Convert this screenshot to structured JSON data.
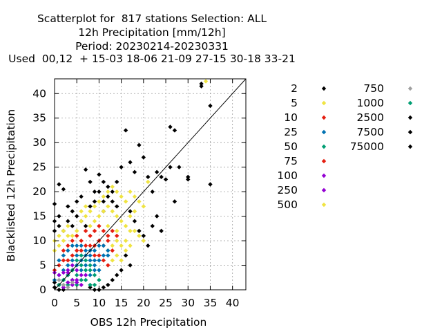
{
  "header": {
    "line1": "Scatterplot for  817 stations Selection: ALL",
    "line2": "12h Precipitation [mm/12h]",
    "line3": "Period: 20230214-20230331",
    "line4": "Used  00,12  + 15-03 18-06 21-09 27-15 30-18 33-21"
  },
  "chart_data": {
    "type": "scatter",
    "title": "Scatterplot for  817 stations Selection: ALL",
    "xlabel": "OBS 12h Precipitation",
    "ylabel": "Blacklisted 12h Precipitation",
    "xlim": [
      0,
      43
    ],
    "ylim": [
      0,
      43
    ],
    "xticks": [
      0,
      5,
      10,
      15,
      20,
      25,
      30,
      35,
      40
    ],
    "yticks": [
      0,
      5,
      10,
      15,
      20,
      25,
      30,
      35,
      40
    ],
    "grid": true,
    "diagonal": true,
    "legend_position": "right",
    "legend": [
      {
        "label": "2",
        "color": "#000000"
      },
      {
        "label": "5",
        "color": "#f0e442"
      },
      {
        "label": "10",
        "color": "#e51e10"
      },
      {
        "label": "25",
        "color": "#0072b2"
      },
      {
        "label": "50",
        "color": "#009e73"
      },
      {
        "label": "75",
        "color": "#e51e10"
      },
      {
        "label": "100",
        "color": "#9400d3"
      },
      {
        "label": "250",
        "color": "#9400d3"
      },
      {
        "label": "500",
        "color": "#f0e442"
      },
      {
        "label": "750",
        "color": "#a0a0a0"
      },
      {
        "label": "1000",
        "color": "#009e73"
      },
      {
        "label": "2500",
        "color": "#000000"
      },
      {
        "label": "7500",
        "color": "#000000"
      },
      {
        "label": "75000",
        "color": "#000000"
      }
    ],
    "series": [
      {
        "name": "2",
        "color": "#000000",
        "points": [
          [
            0,
            17.5
          ],
          [
            1,
            21.5
          ],
          [
            2,
            20.5
          ],
          [
            3,
            17
          ],
          [
            4,
            16
          ],
          [
            5,
            18
          ],
          [
            6,
            19
          ],
          [
            7,
            24.5
          ],
          [
            8,
            22
          ],
          [
            9,
            20
          ],
          [
            10,
            23.5
          ],
          [
            11,
            22
          ],
          [
            12,
            21
          ],
          [
            13,
            20
          ],
          [
            14,
            22
          ],
          [
            15,
            25
          ],
          [
            16,
            32.5
          ],
          [
            17,
            26
          ],
          [
            18,
            24
          ],
          [
            19,
            29.5
          ],
          [
            20,
            27
          ],
          [
            21,
            23
          ],
          [
            22,
            20
          ],
          [
            23,
            24
          ],
          [
            24,
            23
          ],
          [
            25,
            22.5
          ],
          [
            26,
            33.2
          ],
          [
            26,
            25
          ],
          [
            27,
            32.5
          ],
          [
            27,
            18
          ],
          [
            28,
            25
          ],
          [
            30,
            23
          ],
          [
            30,
            22.5
          ],
          [
            33,
            42
          ],
          [
            33,
            41.5
          ],
          [
            35,
            37.5
          ],
          [
            35,
            21.5
          ],
          [
            17,
            16
          ],
          [
            18,
            14
          ],
          [
            19,
            12
          ],
          [
            20,
            11
          ],
          [
            21,
            9
          ],
          [
            22,
            13
          ],
          [
            23,
            15
          ],
          [
            24,
            12
          ],
          [
            16,
            7
          ],
          [
            17,
            5
          ],
          [
            15,
            4
          ],
          [
            14,
            3
          ],
          [
            13,
            2
          ],
          [
            12,
            1
          ],
          [
            11,
            0.5
          ],
          [
            10,
            0
          ],
          [
            9,
            0
          ],
          [
            8,
            0.5
          ],
          [
            1,
            0
          ],
          [
            0,
            0.5
          ],
          [
            1,
            1
          ],
          [
            2,
            0
          ],
          [
            0,
            1.5
          ],
          [
            5,
            15
          ],
          [
            6,
            14
          ],
          [
            7,
            13
          ],
          [
            8,
            17
          ],
          [
            9,
            18
          ],
          [
            3,
            14
          ],
          [
            4,
            13
          ],
          [
            2,
            12
          ],
          [
            1,
            13
          ],
          [
            0,
            12
          ],
          [
            0,
            14
          ],
          [
            1,
            15
          ],
          [
            11,
            18
          ],
          [
            12,
            19
          ],
          [
            13,
            18
          ],
          [
            14,
            17
          ],
          [
            10,
            20
          ],
          [
            11,
            16
          ]
        ]
      },
      {
        "name": "5",
        "color": "#f0e442",
        "points": [
          [
            0,
            10
          ],
          [
            1,
            11
          ],
          [
            2,
            12
          ],
          [
            3,
            13
          ],
          [
            4,
            11
          ],
          [
            5,
            12
          ],
          [
            6,
            14
          ],
          [
            7,
            15
          ],
          [
            8,
            13
          ],
          [
            9,
            14
          ],
          [
            10,
            15
          ],
          [
            11,
            16
          ],
          [
            12,
            17
          ],
          [
            13,
            16
          ],
          [
            14,
            15
          ],
          [
            15,
            14
          ],
          [
            16,
            13
          ],
          [
            17,
            12
          ],
          [
            18,
            12
          ],
          [
            19,
            11
          ],
          [
            20,
            10
          ],
          [
            14,
            10
          ],
          [
            13,
            9
          ],
          [
            12,
            8
          ],
          [
            15,
            9
          ],
          [
            16,
            10
          ],
          [
            17,
            9
          ],
          [
            14,
            7
          ],
          [
            13,
            6
          ],
          [
            15,
            6
          ],
          [
            16,
            8
          ],
          [
            11,
            19
          ],
          [
            12,
            20
          ],
          [
            13,
            21
          ],
          [
            14,
            20
          ],
          [
            15,
            19
          ],
          [
            16,
            18
          ],
          [
            17,
            20
          ],
          [
            18,
            19
          ],
          [
            19,
            18
          ],
          [
            20,
            17
          ],
          [
            21,
            22
          ],
          [
            34,
            42.5
          ],
          [
            10,
            18
          ],
          [
            9,
            17
          ],
          [
            8,
            16
          ],
          [
            7,
            17
          ],
          [
            6,
            16
          ],
          [
            0,
            8
          ],
          [
            1,
            9
          ],
          [
            2,
            10
          ],
          [
            3,
            11
          ],
          [
            12,
            13
          ],
          [
            14,
            12
          ],
          [
            17,
            15
          ],
          [
            18,
            16
          ]
        ]
      },
      {
        "name": "10",
        "color": "#e51e10",
        "points": [
          [
            2,
            8
          ],
          [
            3,
            9
          ],
          [
            4,
            10
          ],
          [
            5,
            11
          ],
          [
            6,
            10
          ],
          [
            7,
            12
          ],
          [
            8,
            11
          ],
          [
            9,
            12
          ],
          [
            10,
            13
          ],
          [
            11,
            12
          ],
          [
            12,
            11
          ],
          [
            13,
            12
          ],
          [
            14,
            11
          ],
          [
            11,
            9
          ],
          [
            12,
            10
          ],
          [
            13,
            8
          ],
          [
            10,
            10
          ],
          [
            9,
            9
          ],
          [
            8,
            9
          ],
          [
            7,
            9
          ],
          [
            6,
            8
          ],
          [
            5,
            8
          ],
          [
            4,
            7
          ],
          [
            3,
            6
          ],
          [
            2,
            6
          ],
          [
            1,
            5
          ],
          [
            0,
            4
          ],
          [
            11,
            6
          ],
          [
            12,
            5
          ],
          [
            10,
            7
          ],
          [
            9,
            7
          ]
        ]
      },
      {
        "name": "25",
        "color": "#0072b2",
        "points": [
          [
            0,
            2
          ],
          [
            1,
            3
          ],
          [
            2,
            4
          ],
          [
            3,
            5
          ],
          [
            4,
            6
          ],
          [
            5,
            7
          ],
          [
            6,
            6
          ],
          [
            7,
            7
          ],
          [
            8,
            8
          ],
          [
            9,
            8
          ],
          [
            10,
            9
          ],
          [
            11,
            9
          ],
          [
            12,
            8
          ],
          [
            2,
            2
          ],
          [
            3,
            3
          ],
          [
            4,
            4
          ],
          [
            5,
            5
          ],
          [
            6,
            4
          ],
          [
            7,
            5
          ],
          [
            8,
            6
          ],
          [
            9,
            6
          ],
          [
            1,
            6
          ],
          [
            2,
            7
          ],
          [
            3,
            8
          ],
          [
            4,
            9
          ],
          [
            5,
            9
          ],
          [
            6,
            9
          ],
          [
            7,
            8
          ],
          [
            8,
            7
          ],
          [
            9,
            5
          ],
          [
            10,
            6
          ],
          [
            11,
            7
          ],
          [
            12,
            7
          ],
          [
            8,
            3
          ],
          [
            9,
            4
          ],
          [
            10,
            4
          ]
        ]
      },
      {
        "name": "50",
        "color": "#009e73",
        "points": [
          [
            1,
            1
          ],
          [
            2,
            2
          ],
          [
            3,
            3
          ],
          [
            4,
            4
          ],
          [
            5,
            3
          ],
          [
            6,
            5
          ],
          [
            7,
            4
          ],
          [
            8,
            5
          ],
          [
            5,
            6
          ],
          [
            6,
            7
          ],
          [
            7,
            6
          ],
          [
            8,
            4
          ],
          [
            9,
            3
          ],
          [
            10,
            2
          ],
          [
            7,
            2
          ],
          [
            8,
            1
          ],
          [
            9,
            1
          ],
          [
            4,
            2
          ],
          [
            5,
            1
          ],
          [
            6,
            2
          ],
          [
            3,
            1
          ]
        ]
      },
      {
        "name": "100",
        "color": "#9400d3",
        "points": [
          [
            0,
            3.5
          ],
          [
            1,
            3
          ],
          [
            2,
            3.5
          ],
          [
            3,
            3.5
          ],
          [
            4,
            2
          ],
          [
            5,
            2
          ],
          [
            6,
            1
          ],
          [
            5,
            1.5
          ],
          [
            4,
            1
          ],
          [
            3,
            1.5
          ],
          [
            2,
            0.5
          ],
          [
            6,
            3
          ],
          [
            7,
            3
          ],
          [
            5,
            4
          ],
          [
            4,
            5
          ],
          [
            3,
            4
          ]
        ]
      },
      {
        "name": "750",
        "color": "#a0a0a0",
        "points": [
          [
            2,
            1
          ],
          [
            3,
            0.5
          ],
          [
            4,
            1.5
          ],
          [
            1,
            2
          ]
        ]
      }
    ]
  }
}
